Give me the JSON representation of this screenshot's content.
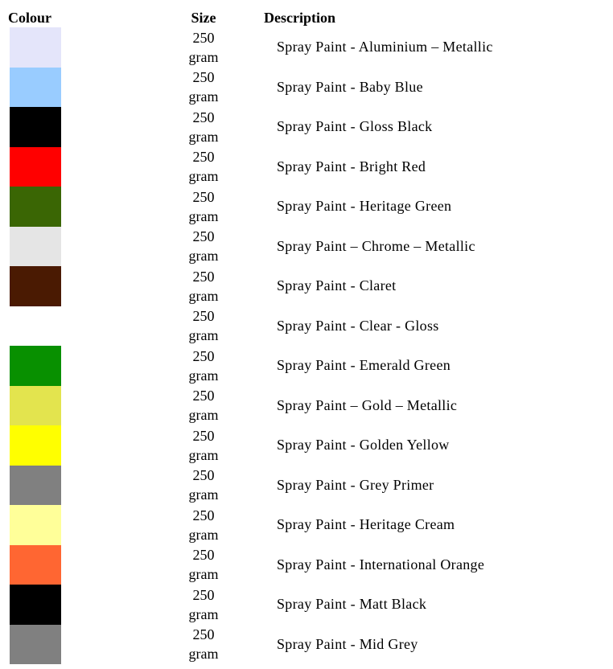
{
  "table": {
    "headers": {
      "colour": "Colour",
      "size": "Size",
      "description": "Description"
    },
    "rows": [
      {
        "colour_hex": "#E4E5FA",
        "size": "250 gram",
        "description": "Spray Paint - Aluminium – Metallic"
      },
      {
        "colour_hex": "#99CCFF",
        "size": "250 gram",
        "description": "Spray Paint - Baby Blue"
      },
      {
        "colour_hex": "#000000",
        "size": "250 gram",
        "description": "Spray Paint - Gloss Black"
      },
      {
        "colour_hex": "#FF0000",
        "size": "250 gram",
        "description": "Spray Paint - Bright Red"
      },
      {
        "colour_hex": "#3A6604",
        "size": "250 gram",
        "description": "Spray Paint - Heritage Green"
      },
      {
        "colour_hex": "#E5E5E5",
        "size": "250 gram",
        "description": "Spray Paint – Chrome – Metallic"
      },
      {
        "colour_hex": "#4A1A02",
        "size": "250 gram",
        "description": "Spray Paint - Claret"
      },
      {
        "colour_hex": null,
        "size": "250 gram",
        "description": "Spray Paint - Clear - Gloss"
      },
      {
        "colour_hex": "#089000",
        "size": "250 gram",
        "description": "Spray Paint - Emerald Green"
      },
      {
        "colour_hex": "#E3E44E",
        "size": "250 gram",
        "description": "Spray Paint – Gold – Metallic"
      },
      {
        "colour_hex": "#FFFF00",
        "size": "250 gram",
        "description": "Spray Paint - Golden Yellow"
      },
      {
        "colour_hex": "#808080",
        "size": "250 gram",
        "description": "Spray Paint - Grey Primer"
      },
      {
        "colour_hex": "#FFFF99",
        "size": "250 gram",
        "description": "Spray Paint - Heritage Cream"
      },
      {
        "colour_hex": "#FF6632",
        "size": "250 gram",
        "description": "Spray Paint - International Orange"
      },
      {
        "colour_hex": "#000000",
        "size": "250 gram",
        "description": "Spray Paint - Matt Black"
      },
      {
        "colour_hex": "#808080",
        "size": "250 gram",
        "description": "Spray Paint - Mid Grey"
      }
    ]
  }
}
